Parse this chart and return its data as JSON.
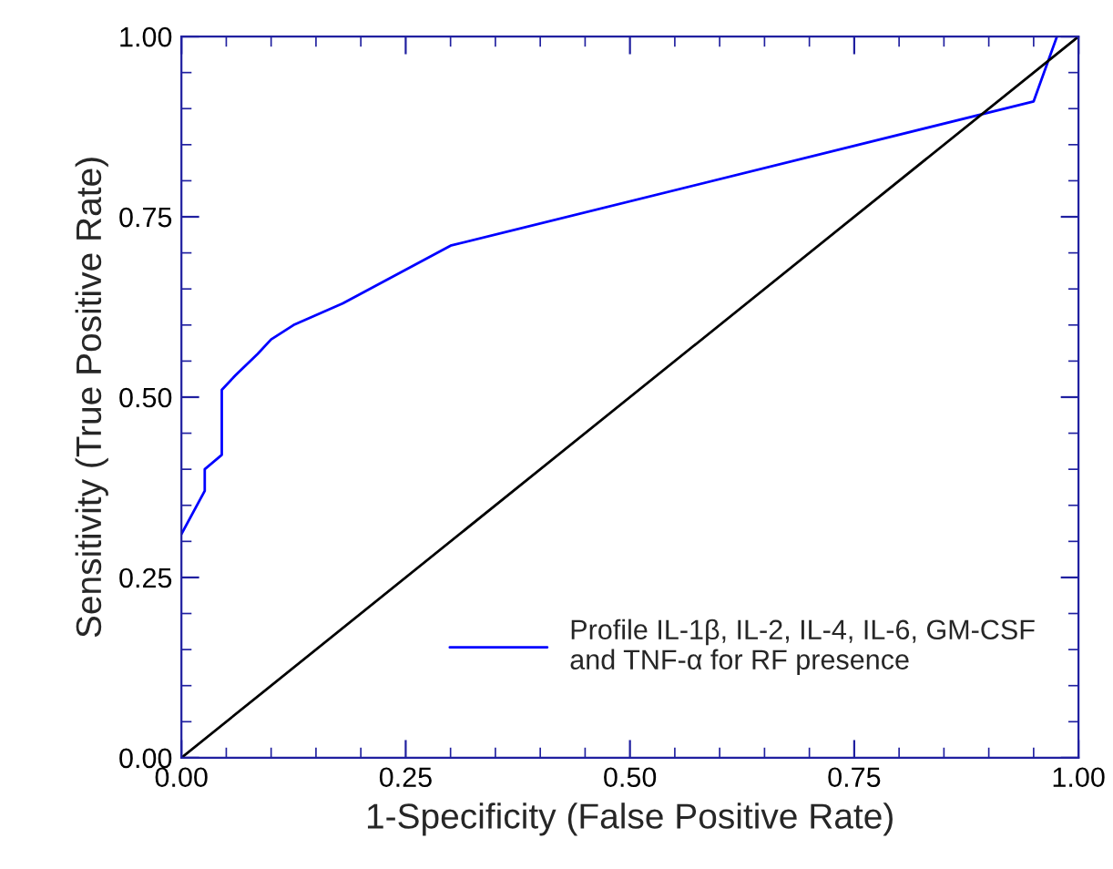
{
  "chart_data": {
    "type": "line",
    "xlabel": "1-Specificity (False Positive Rate)",
    "ylabel": "Sensitivity (True Positive Rate)",
    "xlim": [
      0,
      1
    ],
    "ylim": [
      0,
      1
    ],
    "xticks": [
      {
        "value": 0,
        "label": "0.00"
      },
      {
        "value": 0.25,
        "label": "0.25"
      },
      {
        "value": 0.5,
        "label": "0.50"
      },
      {
        "value": 0.75,
        "label": "0.75"
      },
      {
        "value": 1,
        "label": "1.00"
      }
    ],
    "yticks": [
      {
        "value": 0,
        "label": "0.00"
      },
      {
        "value": 0.25,
        "label": "0.25"
      },
      {
        "value": 0.5,
        "label": "0.50"
      },
      {
        "value": 0.75,
        "label": "0.75"
      },
      {
        "value": 1,
        "label": "1.00"
      }
    ],
    "series": [
      {
        "name": "Profile IL-1β, IL-2, IL-4, IL-6, GM-CSF\nand TNF-α for RF presence",
        "color": "#0000ff",
        "x": [
          0,
          0.026,
          0.026,
          0.045,
          0.045,
          0.06,
          0.085,
          0.1,
          0.125,
          0.18,
          0.3,
          0.95,
          0.976
        ],
        "values": [
          0.31,
          0.37,
          0.4,
          0.42,
          0.51,
          0.53,
          0.56,
          0.58,
          0.6,
          0.63,
          0.71,
          0.91,
          1.0
        ]
      },
      {
        "color": "#000000",
        "x": [
          0,
          1
        ],
        "values": [
          0,
          1
        ]
      }
    ],
    "legend": "bottom right",
    "grid": false,
    "line_style": "solid",
    "marker": "none"
  }
}
